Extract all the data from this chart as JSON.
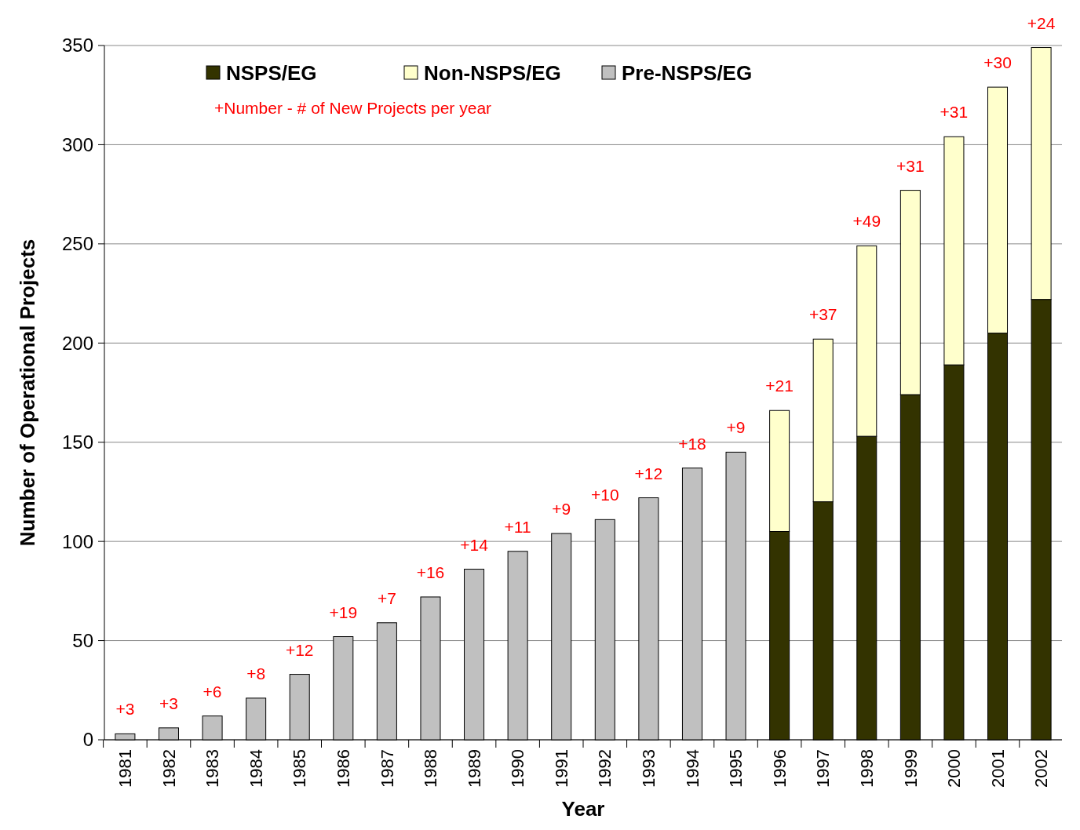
{
  "chart_data": {
    "type": "bar",
    "stacked": true,
    "xlabel": "Year",
    "ylabel": "Number of Operational Projects",
    "categories": [
      "1981",
      "1982",
      "1983",
      "1984",
      "1985",
      "1986",
      "1987",
      "1988",
      "1989",
      "1990",
      "1991",
      "1992",
      "1993",
      "1994",
      "1995",
      "1996",
      "1997",
      "1998",
      "1999",
      "2000",
      "2001",
      "2002"
    ],
    "series": [
      {
        "name": "NSPS/EG",
        "color": "#333300",
        "values": [
          null,
          null,
          null,
          null,
          null,
          null,
          null,
          null,
          null,
          null,
          null,
          null,
          null,
          null,
          null,
          105,
          120,
          153,
          174,
          189,
          205,
          222
        ]
      },
      {
        "name": "Non-NSPS/EG",
        "color": "#ffffcc",
        "values": [
          null,
          null,
          null,
          null,
          null,
          null,
          null,
          null,
          null,
          null,
          null,
          null,
          null,
          null,
          null,
          61,
          82,
          96,
          103,
          115,
          124,
          127
        ]
      },
      {
        "name": "Pre-NSPS/EG",
        "color": "#c0c0c0",
        "values": [
          3,
          6,
          12,
          21,
          33,
          52,
          59,
          72,
          86,
          95,
          104,
          111,
          122,
          137,
          145,
          null,
          null,
          null,
          null,
          null,
          null,
          null
        ]
      }
    ],
    "ylim": [
      0,
      350
    ],
    "yticks": [
      0,
      50,
      100,
      150,
      200,
      250,
      300,
      350
    ],
    "grid": "y",
    "legend": "top left",
    "annotations": [
      "+Number - # of New Projects per year",
      {
        "text": "+3",
        "x": "1981",
        "y": 3
      },
      {
        "text": "+3",
        "x": "1982",
        "y": 6
      },
      {
        "text": "+6",
        "x": "1983",
        "y": 12
      },
      {
        "text": "+8",
        "x": "1984",
        "y": 21
      },
      {
        "text": "+12",
        "x": "1985",
        "y": 33
      },
      {
        "text": "+19",
        "x": "1986",
        "y": 52
      },
      {
        "text": "+7",
        "x": "1987",
        "y": 59
      },
      {
        "text": "+16",
        "x": "1988",
        "y": 72
      },
      {
        "text": "+14",
        "x": "1989",
        "y": 86
      },
      {
        "text": "+11",
        "x": "1990",
        "y": 95
      },
      {
        "text": "+9",
        "x": "1991",
        "y": 104
      },
      {
        "text": "+10",
        "x": "1992",
        "y": 111
      },
      {
        "text": "+12",
        "x": "1993",
        "y": 122
      },
      {
        "text": "+18",
        "x": "1994",
        "y": 137
      },
      {
        "text": "+9",
        "x": "1995",
        "y": 145
      },
      {
        "text": "+21",
        "x": "1996",
        "y": 166
      },
      {
        "text": "+37",
        "x": "1997",
        "y": 202
      },
      {
        "text": "+49",
        "x": "1998",
        "y": 249
      },
      {
        "text": "+31",
        "x": "1999",
        "y": 277
      },
      {
        "text": "+31",
        "x": "2000",
        "y": 304
      },
      {
        "text": "+30",
        "x": "2001",
        "y": 329
      },
      {
        "text": "+24",
        "x": "2002",
        "y": 349
      }
    ]
  }
}
